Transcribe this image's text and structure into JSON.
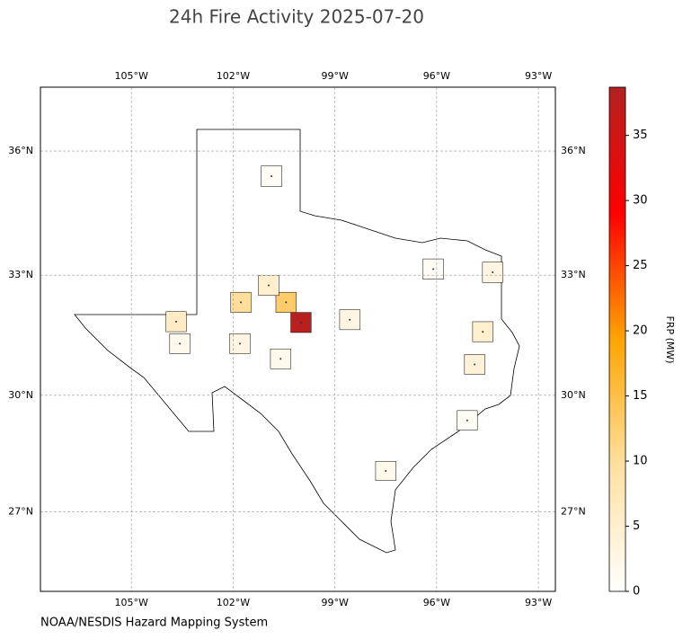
{
  "chart_data": {
    "type": "map",
    "title": "24h Fire Activity 2025-07-20",
    "source": "NOAA/NESDIS Hazard Mapping System",
    "colorbar_label": "FRP (MW)",
    "xlim": [
      -107.68,
      -92.5
    ],
    "ylim": [
      24.9,
      37.5
    ],
    "projection": "mercator",
    "grid": true,
    "xticks": [
      {
        "value": -105,
        "label": "105°W"
      },
      {
        "value": -102,
        "label": "102°W"
      },
      {
        "value": -99,
        "label": "99°W"
      },
      {
        "value": -96,
        "label": "96°W"
      },
      {
        "value": -93,
        "label": "93°W"
      }
    ],
    "yticks": [
      {
        "value": 27,
        "label": "27°N"
      },
      {
        "value": 30,
        "label": "30°N"
      },
      {
        "value": 33,
        "label": "33°N"
      },
      {
        "value": 36,
        "label": "36°N"
      }
    ],
    "clim": [
      0,
      38.7
    ],
    "cticks": [
      0,
      5,
      10,
      15,
      20,
      25,
      30,
      35
    ],
    "colormap": [
      "#ffffff",
      "#ffe0a0",
      "#ffa500",
      "#ff0000",
      "#b22222"
    ],
    "fires": {
      "lon": [
        -100.0,
        -100.44,
        -101.77,
        -100.95,
        -103.68,
        -103.57,
        -101.8,
        -100.6,
        -98.56,
        -100.87,
        -96.1,
        -94.35,
        -94.64,
        -94.88,
        -95.1,
        -97.5
      ],
      "lat": [
        31.83,
        32.33,
        32.33,
        32.75,
        31.85,
        31.3,
        31.3,
        30.92,
        31.9,
        35.4,
        33.15,
        33.07,
        31.6,
        30.78,
        29.36,
        28.06
      ],
      "frp": [
        38,
        13,
        10,
        5,
        6,
        2,
        3,
        2,
        3,
        1,
        1,
        3,
        5,
        4,
        1,
        2
      ]
    }
  }
}
